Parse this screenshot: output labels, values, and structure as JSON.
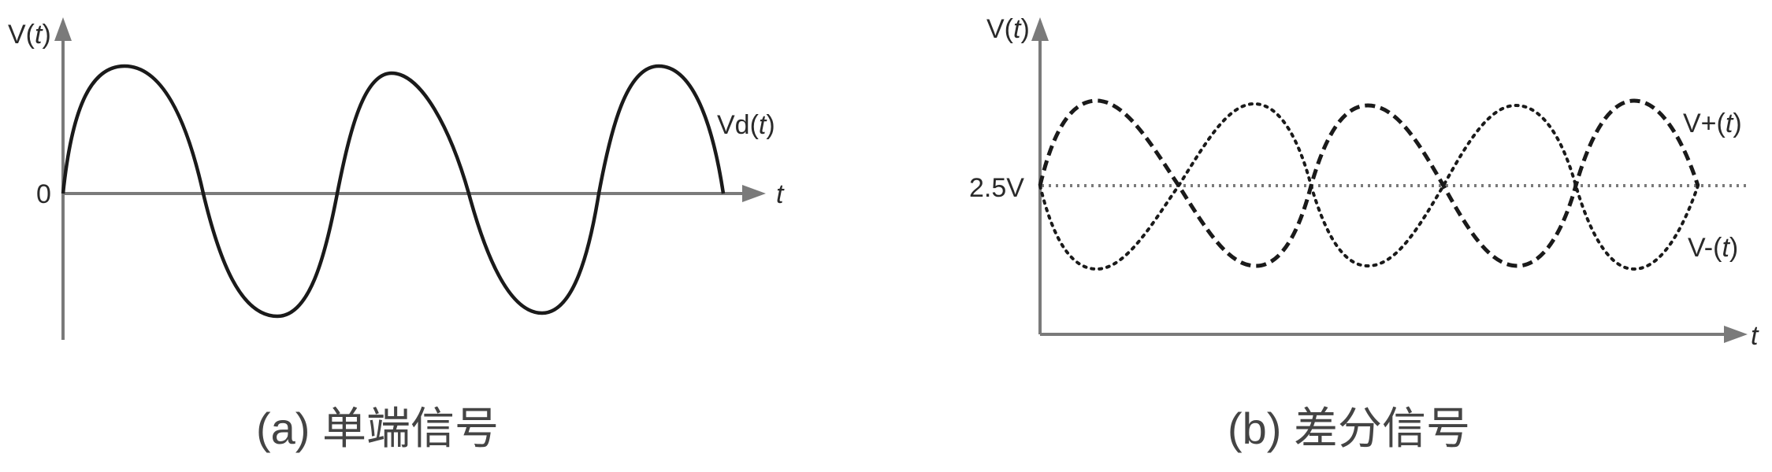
{
  "panel_a": {
    "y_label_main": "V(",
    "y_label_var": "t",
    "y_label_close": ")",
    "origin_label": "0",
    "x_label": "t",
    "signal_label_main": "Vd(",
    "signal_label_var": "t",
    "signal_label_close": ")",
    "caption": "(a) 单端信号"
  },
  "panel_b": {
    "y_label_main": "V(",
    "y_label_var": "t",
    "y_label_close": ")",
    "level_label": "2.5V",
    "x_label": "t",
    "vplus_label_main": "V+(",
    "vplus_label_var": "t",
    "vplus_label_close": ")",
    "vminus_label_main": "V-(",
    "vminus_label_var": "t",
    "vminus_label_close": ")",
    "caption": "(b) 差分信号"
  },
  "colors": {
    "axis": "#7a7a7a",
    "curve": "#1a1a1a",
    "text": "#2a2a2a"
  }
}
